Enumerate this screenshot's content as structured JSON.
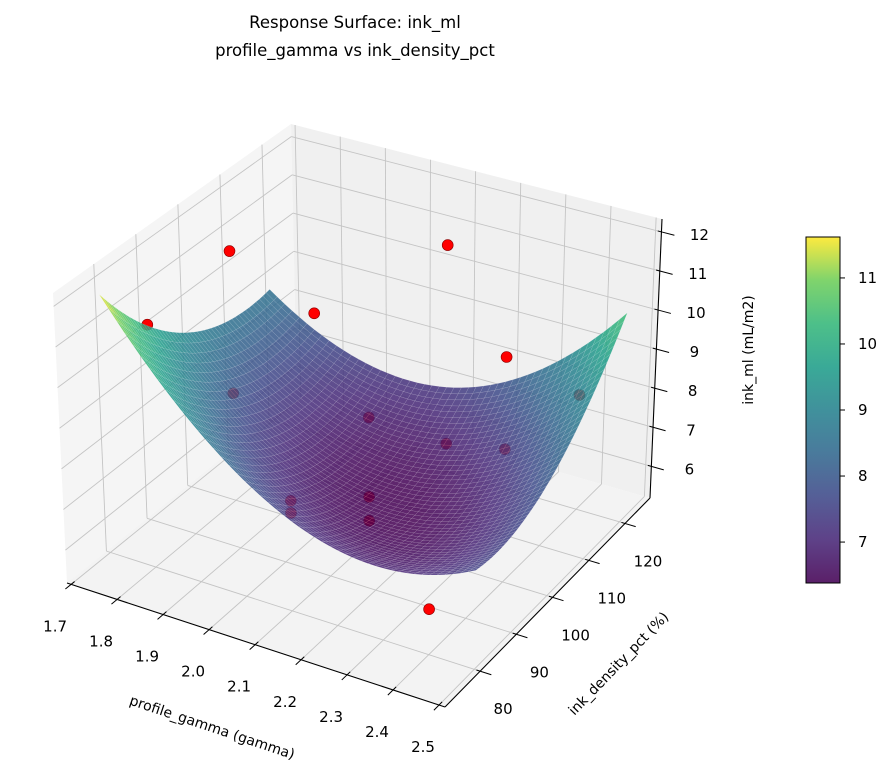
{
  "chart_data": {
    "type": "surface3d",
    "title": [
      "Response Surface: ink_ml",
      "profile_gamma vs ink_density_pct"
    ],
    "xlabel": "profile_gamma (gamma)",
    "ylabel": "ink_density_pct (%)",
    "zlabel": "ink_ml (mL/m2)",
    "xlim": [
      1.691,
      2.513
    ],
    "ylim": [
      70.3,
      126.9
    ],
    "zlim": [
      5.19,
      12.33
    ],
    "x_ticks": [
      "1.7",
      "1.8",
      "1.9",
      "2.0",
      "2.1",
      "2.2",
      "2.3",
      "2.4",
      "2.5"
    ],
    "y_ticks": [
      "80",
      "90",
      "100",
      "110",
      "120"
    ],
    "z_ticks": [
      "6",
      "7",
      "8",
      "9",
      "10",
      "11",
      "12"
    ],
    "grid": true,
    "surface": {
      "x": [
        1.7,
        1.9,
        2.1,
        2.3,
        2.5
      ],
      "y": [
        80,
        90,
        100,
        110,
        120
      ],
      "z": [
        [
          11.6,
          8.95,
          7.4,
          6.95,
          7.6
        ],
        [
          10.1,
          7.82,
          6.64,
          6.56,
          7.58
        ],
        [
          9.1,
          7.19,
          6.38,
          6.66,
          8.05
        ],
        [
          8.6,
          7.06,
          6.61,
          7.27,
          9.03
        ],
        [
          8.6,
          7.43,
          7.35,
          8.38,
          10.5
        ]
      ],
      "colormap": "viridis",
      "alpha": 0.85
    },
    "points": {
      "x": [
        1.8,
        1.8,
        1.8,
        1.8,
        2.1,
        2.1,
        2.1,
        2.1,
        2.1,
        2.1,
        2.1,
        2.4,
        2.4,
        2.4,
        2.4
      ],
      "y": [
        80,
        100,
        100,
        120,
        80,
        80,
        100,
        100,
        100,
        120,
        120,
        80,
        100,
        100,
        120
      ],
      "z": [
        11.2,
        11.5,
        7.9,
        8.3,
        7.9,
        7.6,
        8.3,
        6.3,
        5.7,
        11.0,
        5.9,
        6.3,
        10.8,
        8.5,
        8.1
      ],
      "color": "#ff0000",
      "edge_color": "#8b0000"
    },
    "colorbar": {
      "range": [
        6.38,
        11.62
      ],
      "ticks": [
        "7",
        "8",
        "9",
        "10",
        "11"
      ],
      "colormap_stops": [
        "#440154",
        "#482878",
        "#3e4989",
        "#31688e",
        "#26828e",
        "#1f9e89",
        "#35b779",
        "#6ece58",
        "#fde725"
      ]
    }
  }
}
